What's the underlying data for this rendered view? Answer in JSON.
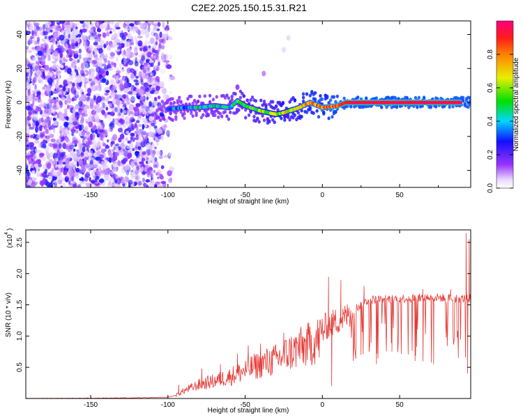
{
  "figure": {
    "title": "C2E2.2025.150.15.31.R21"
  },
  "colors": {
    "snr_line": "#e53935",
    "axis": "#000000",
    "background": "#ffffff"
  },
  "chart_data": [
    {
      "type": "heatmap",
      "title": "",
      "xlabel": "Height of straight line (km)",
      "ylabel": "Frequency (Hz)",
      "xlim": [
        -192,
        96
      ],
      "ylim": [
        -50,
        48
      ],
      "xticks": [
        -150,
        -100,
        -50,
        0,
        50
      ],
      "yticks": [
        -40,
        -20,
        0,
        20,
        40
      ],
      "xtick_labels": [
        "-150",
        "-100",
        "-50",
        "0",
        "50"
      ],
      "ytick_labels": [
        "-40",
        "-20",
        "0",
        "20",
        "40"
      ],
      "colorbar": {
        "label": "Normalized spectral amplitude",
        "range": [
          0,
          1
        ],
        "ticks": [
          0.0,
          0.2,
          0.4,
          0.6,
          0.8
        ],
        "tick_labels": [
          "0.0",
          "0.2",
          "0.4",
          "0.6",
          "0.8"
        ],
        "colormap": "rainbow (white-violet-blue-cyan-green-yellow-red-magenta)"
      },
      "features": {
        "noise_region_x": [
          -192,
          -105
        ],
        "noise_amplitude_range": [
          0.05,
          0.3
        ],
        "ridge": [
          {
            "x": -100,
            "y": -4
          },
          {
            "x": -90,
            "y": -3
          },
          {
            "x": -80,
            "y": -3
          },
          {
            "x": -70,
            "y": -2
          },
          {
            "x": -60,
            "y": -3
          },
          {
            "x": -55,
            "y": 1
          },
          {
            "x": -50,
            "y": -2
          },
          {
            "x": -40,
            "y": -5
          },
          {
            "x": -30,
            "y": -7
          },
          {
            "x": -25,
            "y": -6
          },
          {
            "x": -15,
            "y": -3
          },
          {
            "x": -8,
            "y": 0
          },
          {
            "x": 0,
            "y": -3
          },
          {
            "x": 10,
            "y": -2
          },
          {
            "x": 15,
            "y": 0
          },
          {
            "x": 30,
            "y": 0
          },
          {
            "x": 90,
            "y": 0
          }
        ],
        "ridge_amplitude": [
          {
            "x": -100,
            "a": 0.35
          },
          {
            "x": -60,
            "a": 0.45
          },
          {
            "x": -30,
            "a": 0.6
          },
          {
            "x": -10,
            "a": 0.75
          },
          {
            "x": 10,
            "a": 0.85
          },
          {
            "x": 20,
            "a": 0.95
          },
          {
            "x": 90,
            "a": 0.95
          }
        ],
        "isolated_spots": [
          {
            "x": -55,
            "y": 9,
            "a": 0.15
          },
          {
            "x": -38,
            "y": 17,
            "a": 0.1
          },
          {
            "x": -22,
            "y": 38,
            "a": 0.05
          },
          {
            "x": -25,
            "y": 31,
            "a": 0.05
          }
        ]
      }
    },
    {
      "type": "line",
      "title": "",
      "xlabel": "Height of straight line (km)",
      "ylabel": "SNR (10 * v/v)",
      "y_multiplier_label": "(x10",
      "y_multiplier_exponent": "4",
      "xlim": [
        -192,
        96
      ],
      "ylim": [
        0,
        2.7
      ],
      "xticks": [
        -150,
        -100,
        -50,
        0,
        50
      ],
      "yticks": [
        0.5,
        1.0,
        1.5,
        2.0,
        2.5
      ],
      "xtick_labels": [
        "-150",
        "-100",
        "-50",
        "0",
        "50"
      ],
      "ytick_labels": [
        "0.5",
        "1.0",
        "1.5",
        "2.0",
        "2.5"
      ],
      "series": [
        {
          "envelope": [
            {
              "x": -192,
              "y": 0.0
            },
            {
              "x": -120,
              "y": 0.01
            },
            {
              "x": -100,
              "y": 0.02
            },
            {
              "x": -95,
              "y": 0.05
            },
            {
              "x": -90,
              "y": 0.12
            },
            {
              "x": -80,
              "y": 0.22
            },
            {
              "x": -70,
              "y": 0.28
            },
            {
              "x": -60,
              "y": 0.35
            },
            {
              "x": -50,
              "y": 0.45
            },
            {
              "x": -40,
              "y": 0.55
            },
            {
              "x": -30,
              "y": 0.62
            },
            {
              "x": -20,
              "y": 0.75
            },
            {
              "x": -10,
              "y": 0.85
            },
            {
              "x": -2,
              "y": 0.95
            },
            {
              "x": 2,
              "y": 1.15
            },
            {
              "x": 10,
              "y": 1.25
            },
            {
              "x": 15,
              "y": 1.3
            },
            {
              "x": 22,
              "y": 1.45
            },
            {
              "x": 30,
              "y": 1.58
            },
            {
              "x": 50,
              "y": 1.6
            },
            {
              "x": 70,
              "y": 1.62
            },
            {
              "x": 90,
              "y": 1.6
            },
            {
              "x": 96,
              "y": 1.6
            }
          ],
          "spikes": [
            {
              "x": -93,
              "y": 0.22
            },
            {
              "x": -78,
              "y": 0.48
            },
            {
              "x": -66,
              "y": 0.55
            },
            {
              "x": -55,
              "y": 0.72
            },
            {
              "x": -48,
              "y": 0.85
            },
            {
              "x": -40,
              "y": 0.88
            },
            {
              "x": -25,
              "y": 1.05
            },
            {
              "x": -15,
              "y": 1.05
            },
            {
              "x": 4,
              "y": 1.95
            },
            {
              "x": 6,
              "y": 0.2
            },
            {
              "x": 12,
              "y": 1.9
            },
            {
              "x": 27,
              "y": 1.8
            },
            {
              "x": 65,
              "y": 1.75
            },
            {
              "x": 83,
              "y": 1.75
            },
            {
              "x": 93,
              "y": 2.65
            },
            {
              "x": 94,
              "y": 0.4
            },
            {
              "x": 95,
              "y": 2.55
            }
          ],
          "dips": [
            {
              "x": 20,
              "y": 0.6
            },
            {
              "x": 25,
              "y": 0.7
            },
            {
              "x": 35,
              "y": 0.55
            },
            {
              "x": 45,
              "y": 0.75
            },
            {
              "x": 60,
              "y": 0.6
            },
            {
              "x": 72,
              "y": 0.55
            },
            {
              "x": 88,
              "y": 0.65
            }
          ]
        }
      ]
    }
  ]
}
